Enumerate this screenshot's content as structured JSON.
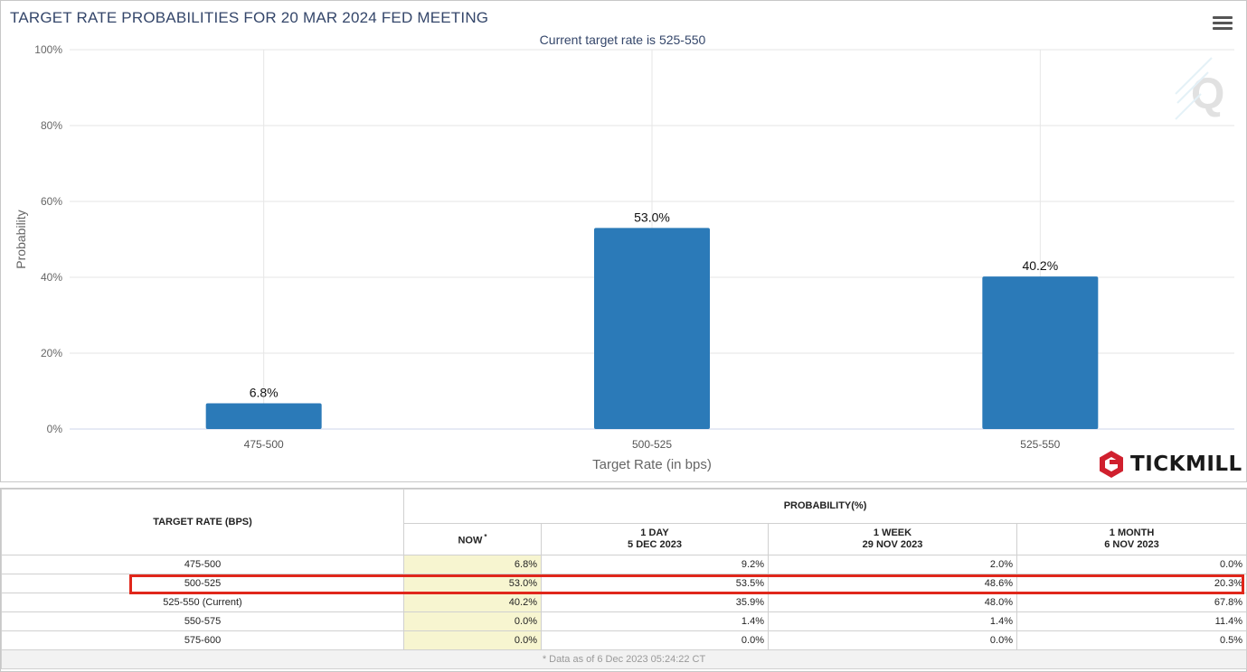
{
  "chart_title": "TARGET RATE PROBABILITIES FOR 20 MAR 2024 FED MEETING",
  "chart_subtitle": "Current target rate is 525-550",
  "menu_icon": "hamburger-menu-icon",
  "brand": {
    "name": "TICKMILL",
    "logo_icon": "tickmill-hexagon-logo-icon",
    "logo_color": "#d0202e"
  },
  "watermark_icon": "q-watermark-icon",
  "chart_data": {
    "type": "bar",
    "title": "TARGET RATE PROBABILITIES FOR 20 MAR 2024 FED MEETING",
    "subtitle": "Current target rate is 525-550",
    "categories": [
      "475-500",
      "500-525",
      "525-550"
    ],
    "values": [
      6.8,
      53.0,
      40.2
    ],
    "data_labels": [
      "6.8%",
      "53.0%",
      "40.2%"
    ],
    "xlabel": "Target Rate (in bps)",
    "ylabel": "Probability",
    "ylim": [
      0,
      100
    ],
    "yticks": [
      "0%",
      "20%",
      "40%",
      "60%",
      "80%",
      "100%"
    ],
    "grid": true,
    "bar_color": "#2b7ab8"
  },
  "table": {
    "header_rate": "TARGET RATE (BPS)",
    "header_prob": "PROBABILITY(%)",
    "columns": [
      {
        "line1": "NOW",
        "line2": "",
        "mark": "*"
      },
      {
        "line1": "1 DAY",
        "line2": "5 DEC 2023",
        "mark": ""
      },
      {
        "line1": "1 WEEK",
        "line2": "29 NOV 2023",
        "mark": ""
      },
      {
        "line1": "1 MONTH",
        "line2": "6 NOV 2023",
        "mark": ""
      }
    ],
    "rows": [
      {
        "rate": "475-500",
        "values": [
          "6.8%",
          "9.2%",
          "2.0%",
          "0.0%"
        ]
      },
      {
        "rate": "500-525",
        "values": [
          "53.0%",
          "53.5%",
          "48.6%",
          "20.3%"
        ]
      },
      {
        "rate": "525-550 (Current)",
        "values": [
          "40.2%",
          "35.9%",
          "48.0%",
          "67.8%"
        ]
      },
      {
        "rate": "550-575",
        "values": [
          "0.0%",
          "1.4%",
          "1.4%",
          "11.4%"
        ]
      },
      {
        "rate": "575-600",
        "values": [
          "0.0%",
          "0.0%",
          "0.0%",
          "0.5%"
        ]
      }
    ],
    "footnote": "* Data as of 6 Dec 2023 05:24:22 CT",
    "highlight_row": "500-525",
    "highlight_color": "#e0271b"
  }
}
